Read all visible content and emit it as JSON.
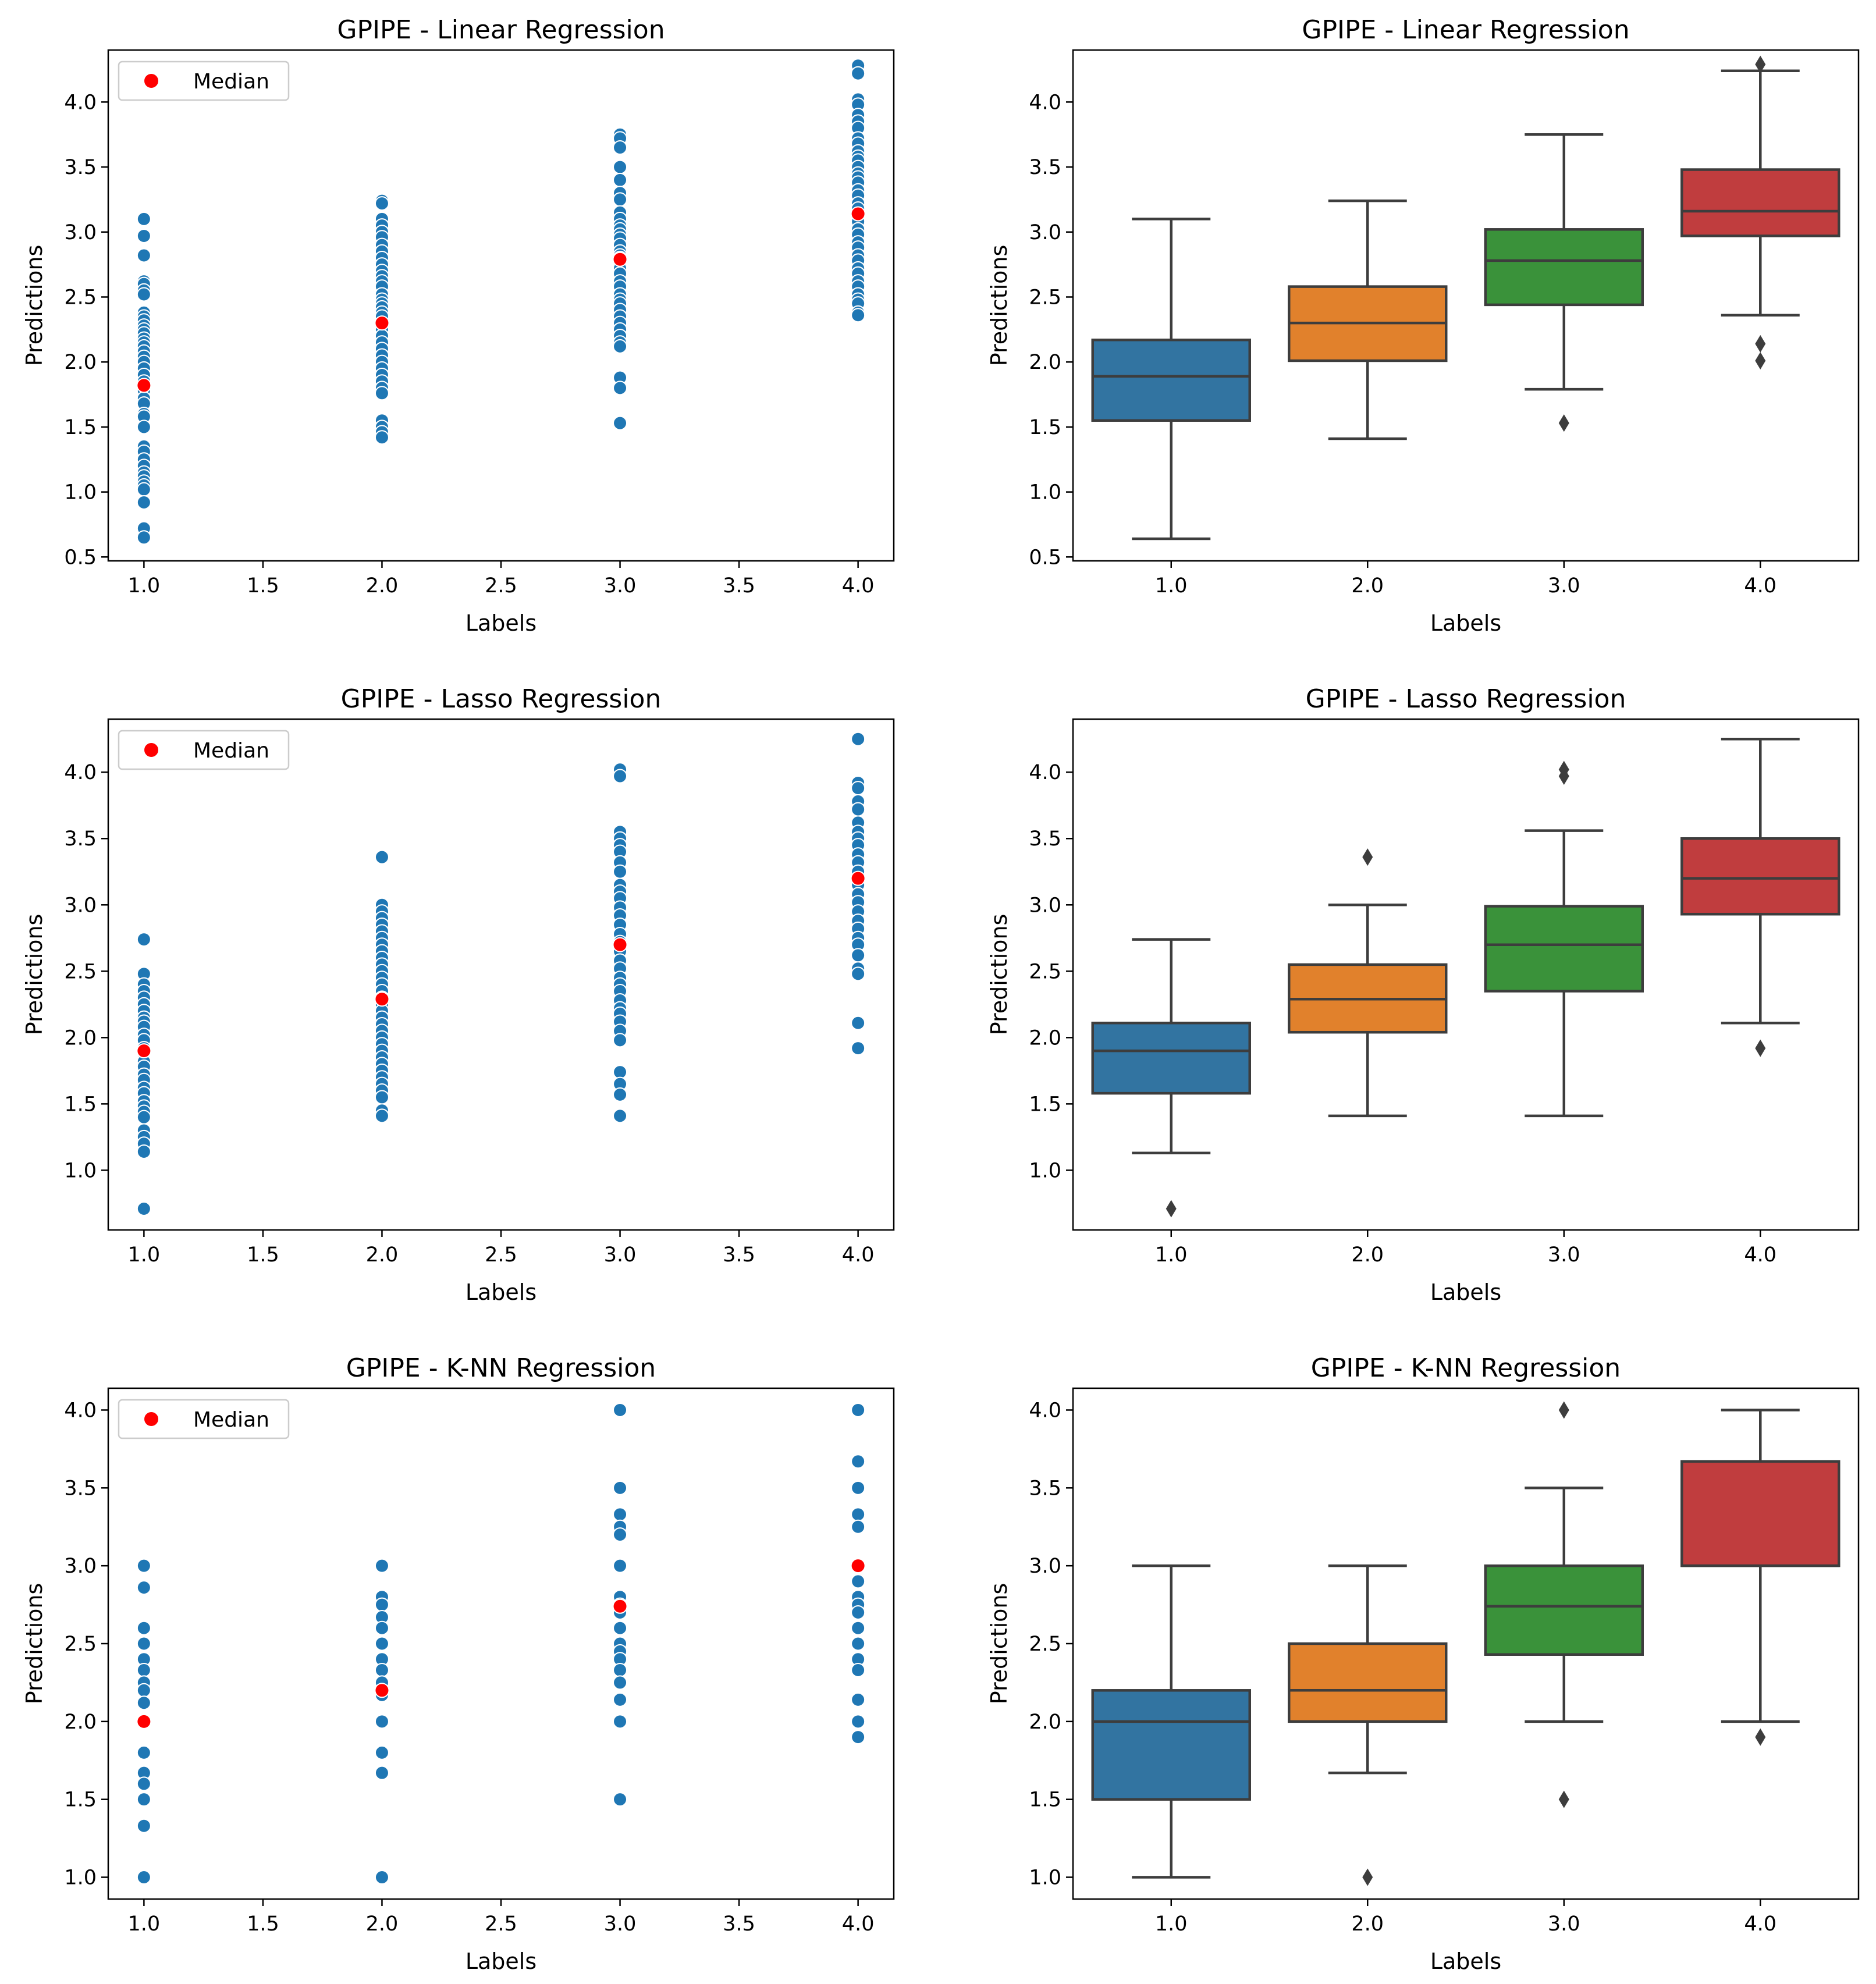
{
  "chart_data": [
    {
      "type": "scatter",
      "title": "GPIPE - Linear Regression",
      "xlabel": "Labels",
      "ylabel": "Predictions",
      "xlim": [
        0.85,
        4.15
      ],
      "ylim": [
        0.47,
        4.4
      ],
      "xticks": [
        "1.0",
        "1.5",
        "2.0",
        "2.5",
        "3.0",
        "3.5",
        "4.0"
      ],
      "yticks": [
        "0.5",
        "1.0",
        "1.5",
        "2.0",
        "2.5",
        "3.0",
        "3.5",
        "4.0"
      ],
      "legend": {
        "label": "Median",
        "location": "upper-left"
      },
      "series": [
        {
          "x": 1.0,
          "values": [
            3.1,
            2.97,
            2.82,
            2.62,
            2.6,
            2.55,
            2.52,
            2.38,
            2.35,
            2.32,
            2.28,
            2.25,
            2.22,
            2.18,
            2.15,
            2.12,
            2.08,
            2.04,
            2.0,
            1.95,
            1.9,
            1.85,
            1.78,
            1.72,
            1.68,
            1.6,
            1.58,
            1.5,
            1.35,
            1.31,
            1.25,
            1.2,
            1.15,
            1.12,
            1.08,
            1.05,
            1.02,
            0.92,
            0.72,
            0.65
          ]
        },
        {
          "x": 2.0,
          "values": [
            3.24,
            3.22,
            3.1,
            3.05,
            3.0,
            2.96,
            2.9,
            2.85,
            2.8,
            2.75,
            2.7,
            2.66,
            2.62,
            2.58,
            2.52,
            2.48,
            2.45,
            2.42,
            2.38,
            2.35,
            2.3,
            2.25,
            2.2,
            2.15,
            2.1,
            2.05,
            2.0,
            1.95,
            1.9,
            1.85,
            1.8,
            1.76,
            1.55,
            1.5,
            1.46,
            1.42
          ]
        },
        {
          "x": 3.0,
          "values": [
            3.75,
            3.72,
            3.65,
            3.5,
            3.4,
            3.3,
            3.25,
            3.15,
            3.1,
            3.05,
            3.02,
            2.98,
            2.95,
            2.9,
            2.85,
            2.82,
            2.8,
            2.78,
            2.75,
            2.72,
            2.68,
            2.62,
            2.58,
            2.52,
            2.48,
            2.45,
            2.4,
            2.35,
            2.3,
            2.25,
            2.2,
            2.15,
            2.12,
            1.88,
            1.8,
            1.53
          ]
        },
        {
          "x": 4.0,
          "values": [
            4.28,
            4.22,
            4.02,
            3.98,
            3.9,
            3.85,
            3.8,
            3.72,
            3.68,
            3.62,
            3.58,
            3.55,
            3.5,
            3.45,
            3.42,
            3.38,
            3.32,
            3.28,
            3.22,
            3.18,
            3.12,
            3.08,
            3.02,
            2.98,
            2.92,
            2.88,
            2.82,
            2.78,
            2.72,
            2.68,
            2.62,
            2.58,
            2.52,
            2.48,
            2.45,
            2.38,
            2.36
          ]
        }
      ],
      "median": [
        [
          1.0,
          1.82
        ],
        [
          2.0,
          2.3
        ],
        [
          3.0,
          2.79
        ],
        [
          4.0,
          3.14
        ]
      ]
    },
    {
      "type": "box",
      "title": "GPIPE - Linear Regression",
      "xlabel": "Labels",
      "ylabel": "Predictions",
      "ylim": [
        0.47,
        4.4
      ],
      "categories": [
        "1.0",
        "2.0",
        "3.0",
        "4.0"
      ],
      "yticks": [
        "0.5",
        "1.0",
        "1.5",
        "2.0",
        "2.5",
        "3.0",
        "3.5",
        "4.0"
      ],
      "boxes": [
        {
          "whisker_low": 0.64,
          "q1": 1.55,
          "median": 1.89,
          "q3": 2.17,
          "whisker_high": 3.1,
          "outliers": [],
          "color": "#3274a1"
        },
        {
          "whisker_low": 1.41,
          "q1": 2.01,
          "median": 2.3,
          "q3": 2.58,
          "whisker_high": 3.24,
          "outliers": [],
          "color": "#e1812c"
        },
        {
          "whisker_low": 1.79,
          "q1": 2.44,
          "median": 2.78,
          "q3": 3.02,
          "whisker_high": 3.75,
          "outliers": [
            1.53
          ],
          "color": "#3a923a"
        },
        {
          "whisker_low": 2.36,
          "q1": 2.97,
          "median": 3.16,
          "q3": 3.48,
          "whisker_high": 4.24,
          "outliers": [
            4.29,
            2.14,
            2.01
          ],
          "color": "#c03d3e"
        }
      ]
    },
    {
      "type": "scatter",
      "title": "GPIPE - Lasso Regression",
      "xlabel": "Labels",
      "ylabel": "Predictions",
      "xlim": [
        0.85,
        4.15
      ],
      "ylim": [
        0.55,
        4.4
      ],
      "xticks": [
        "1.0",
        "1.5",
        "2.0",
        "2.5",
        "3.0",
        "3.5",
        "4.0"
      ],
      "yticks": [
        "1.0",
        "1.5",
        "2.0",
        "2.5",
        "3.0",
        "3.5",
        "4.0"
      ],
      "legend": {
        "label": "Median",
        "location": "upper-left"
      },
      "series": [
        {
          "x": 1.0,
          "values": [
            2.74,
            2.48,
            2.4,
            2.35,
            2.3,
            2.25,
            2.2,
            2.15,
            2.12,
            2.08,
            2.02,
            1.98,
            1.92,
            1.88,
            1.82,
            1.78,
            1.72,
            1.68,
            1.62,
            1.58,
            1.52,
            1.48,
            1.44,
            1.4,
            1.3,
            1.25,
            1.2,
            1.14,
            0.71
          ]
        },
        {
          "x": 2.0,
          "values": [
            3.36,
            3.0,
            2.95,
            2.9,
            2.85,
            2.8,
            2.75,
            2.7,
            2.65,
            2.6,
            2.55,
            2.5,
            2.45,
            2.4,
            2.35,
            2.3,
            2.25,
            2.2,
            2.15,
            2.1,
            2.05,
            2.0,
            1.95,
            1.9,
            1.85,
            1.8,
            1.75,
            1.7,
            1.65,
            1.6,
            1.55,
            1.45,
            1.41
          ]
        },
        {
          "x": 3.0,
          "values": [
            4.02,
            3.97,
            3.55,
            3.5,
            3.45,
            3.4,
            3.32,
            3.25,
            3.15,
            3.1,
            3.05,
            2.98,
            2.92,
            2.85,
            2.78,
            2.72,
            2.65,
            2.58,
            2.52,
            2.45,
            2.4,
            2.35,
            2.28,
            2.22,
            2.18,
            2.12,
            2.05,
            1.98,
            1.74,
            1.65,
            1.57,
            1.41
          ]
        },
        {
          "x": 4.0,
          "values": [
            4.25,
            3.92,
            3.88,
            3.78,
            3.72,
            3.62,
            3.55,
            3.5,
            3.45,
            3.38,
            3.32,
            3.25,
            3.15,
            3.08,
            3.02,
            2.95,
            2.88,
            2.82,
            2.75,
            2.7,
            2.62,
            2.52,
            2.48,
            2.11,
            1.92
          ]
        }
      ],
      "median": [
        [
          1.0,
          1.9
        ],
        [
          2.0,
          2.29
        ],
        [
          3.0,
          2.7
        ],
        [
          4.0,
          3.2
        ]
      ]
    },
    {
      "type": "box",
      "title": "GPIPE - Lasso Regression",
      "xlabel": "Labels",
      "ylabel": "Predictions",
      "ylim": [
        0.55,
        4.4
      ],
      "categories": [
        "1.0",
        "2.0",
        "3.0",
        "4.0"
      ],
      "yticks": [
        "1.0",
        "1.5",
        "2.0",
        "2.5",
        "3.0",
        "3.5",
        "4.0"
      ],
      "boxes": [
        {
          "whisker_low": 1.13,
          "q1": 1.58,
          "median": 1.9,
          "q3": 2.11,
          "whisker_high": 2.74,
          "outliers": [
            0.71
          ],
          "color": "#3274a1"
        },
        {
          "whisker_low": 1.41,
          "q1": 2.04,
          "median": 2.29,
          "q3": 2.55,
          "whisker_high": 3.0,
          "outliers": [
            3.36
          ],
          "color": "#e1812c"
        },
        {
          "whisker_low": 1.41,
          "q1": 2.35,
          "median": 2.7,
          "q3": 2.99,
          "whisker_high": 3.56,
          "outliers": [
            4.02,
            3.97
          ],
          "color": "#3a923a"
        },
        {
          "whisker_low": 2.11,
          "q1": 2.93,
          "median": 3.2,
          "q3": 3.5,
          "whisker_high": 4.25,
          "outliers": [
            1.92
          ],
          "color": "#c03d3e"
        }
      ]
    },
    {
      "type": "scatter",
      "title": "GPIPE - K-NN Regression",
      "xlabel": "Labels",
      "ylabel": "Predictions",
      "xlim": [
        0.85,
        4.15
      ],
      "ylim": [
        0.86,
        4.14
      ],
      "xticks": [
        "1.0",
        "1.5",
        "2.0",
        "2.5",
        "3.0",
        "3.5",
        "4.0"
      ],
      "yticks": [
        "1.0",
        "1.5",
        "2.0",
        "2.5",
        "3.0",
        "3.5",
        "4.0"
      ],
      "legend": {
        "label": "Median",
        "location": "upper-left"
      },
      "series": [
        {
          "x": 1.0,
          "values": [
            3.0,
            2.86,
            2.6,
            2.5,
            2.4,
            2.33,
            2.25,
            2.2,
            2.12,
            2.0,
            1.8,
            1.67,
            1.6,
            1.5,
            1.33,
            1.0
          ]
        },
        {
          "x": 2.0,
          "values": [
            3.0,
            2.8,
            2.75,
            2.67,
            2.6,
            2.5,
            2.4,
            2.33,
            2.25,
            2.2,
            2.17,
            2.0,
            1.8,
            1.67,
            1.0
          ]
        },
        {
          "x": 3.0,
          "values": [
            4.0,
            3.5,
            3.33,
            3.25,
            3.2,
            3.0,
            2.8,
            2.75,
            2.7,
            2.6,
            2.5,
            2.45,
            2.4,
            2.33,
            2.25,
            2.14,
            2.0,
            1.5
          ]
        },
        {
          "x": 4.0,
          "values": [
            4.0,
            3.67,
            3.5,
            3.33,
            3.25,
            3.0,
            2.9,
            2.8,
            2.75,
            2.7,
            2.6,
            2.5,
            2.4,
            2.33,
            2.14,
            2.0,
            1.9
          ]
        }
      ],
      "median": [
        [
          1.0,
          2.0
        ],
        [
          2.0,
          2.2
        ],
        [
          3.0,
          2.74
        ],
        [
          4.0,
          3.0
        ]
      ]
    },
    {
      "type": "box",
      "title": "GPIPE - K-NN Regression",
      "xlabel": "Labels",
      "ylabel": "Predictions",
      "ylim": [
        0.86,
        4.14
      ],
      "categories": [
        "1.0",
        "2.0",
        "3.0",
        "4.0"
      ],
      "yticks": [
        "1.0",
        "1.5",
        "2.0",
        "2.5",
        "3.0",
        "3.5",
        "4.0"
      ],
      "boxes": [
        {
          "whisker_low": 1.0,
          "q1": 1.5,
          "median": 2.0,
          "q3": 2.2,
          "whisker_high": 3.0,
          "outliers": [],
          "color": "#3274a1"
        },
        {
          "whisker_low": 1.67,
          "q1": 2.0,
          "median": 2.2,
          "q3": 2.5,
          "whisker_high": 3.0,
          "outliers": [
            1.0
          ],
          "color": "#e1812c"
        },
        {
          "whisker_low": 2.0,
          "q1": 2.43,
          "median": 2.74,
          "q3": 3.0,
          "whisker_high": 3.5,
          "outliers": [
            4.0,
            1.5
          ],
          "color": "#3a923a"
        },
        {
          "whisker_low": 2.0,
          "q1": 3.0,
          "median": 3.0,
          "q3": 3.67,
          "whisker_high": 4.0,
          "outliers": [
            1.9
          ],
          "color": "#c03d3e"
        }
      ]
    }
  ],
  "colors": {
    "point": "#1f77b4",
    "median": "#ff0000",
    "line": "#3d3d3d"
  }
}
